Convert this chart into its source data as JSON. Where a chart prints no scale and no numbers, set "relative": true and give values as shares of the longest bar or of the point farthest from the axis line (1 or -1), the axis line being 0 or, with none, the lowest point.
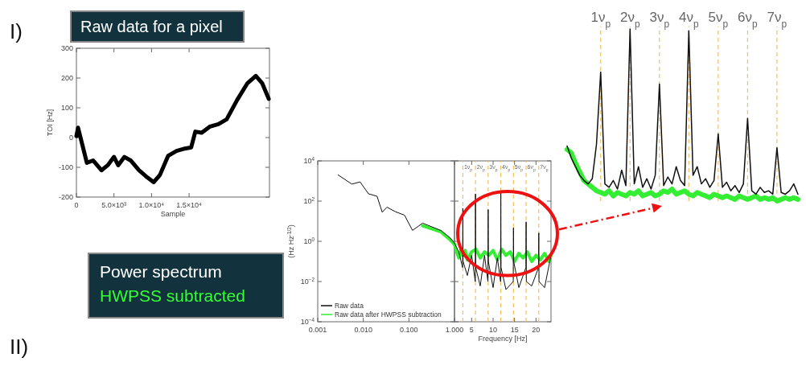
{
  "chart_data": [
    {
      "type": "line",
      "title": "Raw data for a pixel",
      "xlabel": "Sample",
      "ylabel": "TOI [Hz]",
      "annotations": [
        "I)",
        "II)"
      ],
      "x": [
        0,
        220,
        1390,
        2220,
        3330,
        4170,
        5000,
        5560,
        6390,
        7220,
        8330,
        9440,
        10280,
        11110,
        12220,
        13330,
        14440,
        15280,
        15830,
        16670,
        17780,
        18890,
        20000,
        21390,
        22780,
        23890,
        24720,
        25600
      ],
      "values": [
        5,
        33,
        -85,
        -77,
        -110,
        -93,
        -65,
        -93,
        -65,
        -77,
        -110,
        -134,
        -150,
        -126,
        -61,
        -45,
        -37,
        -33,
        20,
        16,
        37,
        45,
        61,
        126,
        183,
        207,
        183,
        130
      ],
      "color": "#000000",
      "xlim": [
        0,
        25700
      ],
      "ylim": [
        -200,
        300
      ],
      "xticks": [
        0,
        {
          "value": 5000,
          "label": "5.0×10³"
        },
        {
          "value": 10000,
          "label": "1.0×10⁴"
        },
        {
          "value": 15000,
          "label": "1.5×10⁴"
        }
      ],
      "yticks": [
        -200,
        -100,
        0,
        100,
        200,
        300
      ]
    },
    {
      "type": "line",
      "ylabel": "(Hz Hz$^{-1/2}$)",
      "annotations": [
        "Power spectrum",
        "HWPSS subtracted"
      ],
      "log": "xy",
      "legend": "bottom left",
      "xlim": [
        0.001,
        1
      ],
      "ylim": [
        0.0001,
        10000
      ],
      "xticks": [
        0.001,
        {
          "value": 0.01,
          "label": "0.010"
        },
        {
          "value": 0.1,
          "label": "0.100"
        },
        {
          "value": 1,
          "label": "1.000"
        }
      ],
      "yticks": [
        {
          "value": 10000,
          "label": "10$^{4}$"
        },
        {
          "value": 100,
          "label": "10$^{2}$"
        },
        {
          "value": 1,
          "label": "10$^{0}$"
        },
        {
          "value": 0.01,
          "label": "10$^{−2}$"
        },
        {
          "value": 0.0001,
          "label": "10$^{−4}$"
        }
      ],
      "series": [
        {
          "name": "Raw data",
          "color": "#111111",
          "x": [
            0.0028,
            0.0056,
            0.0085,
            0.013,
            0.02,
            0.026,
            0.033,
            0.05,
            0.08,
            0.12,
            0.2,
            0.5,
            0.8,
            1.0
          ],
          "values": [
            2000,
            700,
            900,
            230,
            175,
            28,
            50,
            30,
            20,
            3.5,
            8,
            3.5,
            1.5,
            0.8
          ]
        },
        {
          "name": "Raw data after HWPSS subtraction",
          "color": "#33ee33",
          "x": [
            0.2,
            0.5,
            0.8,
            1.0
          ],
          "values": [
            6,
            3,
            1.2,
            0.7
          ]
        }
      ]
    },
    {
      "type": "line",
      "xlabel": "Frequency [Hz]",
      "log": "y",
      "tick_labels": "x",
      "xlim": [
        1,
        23.5
      ],
      "ylim": [
        0.0001,
        10000
      ],
      "xticks": [
        5,
        10,
        15,
        20
      ],
      "yticks": [
        {
          "value": 10000,
          "label": null
        },
        {
          "value": 100,
          "label": null
        },
        {
          "value": 1,
          "label": null
        },
        {
          "value": 0.01,
          "label": null
        },
        {
          "value": 0.0001,
          "label": null
        }
      ],
      "series": [
        {
          "color": "#111111",
          "x": [
            1.0,
            2,
            2.9,
            2.95,
            3.0,
            4,
            5,
            5.85,
            5.9,
            5.95,
            7,
            8,
            8.8,
            8.85,
            8.9,
            10,
            11,
            11.75,
            11.8,
            11.85,
            13,
            14.7,
            14.75,
            14.8,
            16,
            17.65,
            17.7,
            17.75,
            19,
            20.6,
            20.65,
            20.7,
            22,
            23.5
          ],
          "values": [
            0.8,
            0.3,
            0.05,
            44,
            0.1,
            0.02,
            0.2,
            0.01,
            230,
            0.05,
            0.006,
            0.2,
            0.01,
            38,
            0.1,
            0.005,
            0.15,
            0.01,
            260,
            0.05,
            0.004,
            0.01,
            4.7,
            0.1,
            0.005,
            0.05,
            9.3,
            0.01,
            0.006,
            0.05,
            2.6,
            0.01,
            0.005,
            0.2
          ]
        },
        {
          "color": "#33ee33",
          "x": [
            1.0,
            1.5,
            2,
            2.5,
            3,
            3.5,
            4,
            5,
            6,
            7,
            8,
            9,
            10,
            11,
            12,
            13,
            14,
            15,
            16,
            17,
            18,
            19,
            20,
            21,
            22,
            23,
            23.5
          ],
          "values": [
            0.7,
            0.3,
            0.15,
            0.4,
            0.2,
            0.35,
            0.12,
            0.3,
            0.4,
            0.15,
            0.3,
            0.2,
            0.35,
            0.12,
            0.4,
            0.2,
            0.3,
            0.1,
            0.25,
            0.15,
            0.3,
            0.1,
            0.2,
            0.12,
            0.25,
            0.1,
            0.2
          ]
        }
      ],
      "ref_lines": [
        {
          "axis": "x",
          "value": 2.95,
          "label": "1ν$_{p}$",
          "color": "#f0c060",
          "line_style": "dashed"
        },
        {
          "axis": "x",
          "value": 5.9,
          "label": "2ν$_{p}$",
          "color": "#f0c060",
          "line_style": "dashed"
        },
        {
          "axis": "x",
          "value": 8.85,
          "label": "3ν$_{p}$",
          "color": "#f0c060",
          "line_style": "dashed"
        },
        {
          "axis": "x",
          "value": 11.8,
          "label": "4ν$_{p}$",
          "color": "#f0c060",
          "line_style": "dashed"
        },
        {
          "axis": "x",
          "value": 14.75,
          "label": "5ν$_{p}$",
          "color": "#f0c060",
          "line_style": "dashed"
        },
        {
          "axis": "x",
          "value": 17.7,
          "label": "6ν$_{p}$",
          "color": "#f0c060",
          "line_style": "dashed"
        },
        {
          "axis": "x",
          "value": 20.65,
          "label": "7ν$_{p}$",
          "color": "#f0c060",
          "line_style": "dashed"
        }
      ]
    },
    {
      "type": "line",
      "relative": true,
      "categories": [
        null,
        null,
        null,
        null,
        null,
        null,
        null,
        null,
        "1ν$_{p}$",
        null,
        null,
        null,
        null,
        null,
        null,
        "2ν$_{p}$",
        null,
        null,
        null,
        null,
        null,
        null,
        "3ν$_{p}$",
        null,
        null,
        null,
        null,
        null,
        null,
        "4ν$_{p}$",
        null,
        null,
        null,
        null,
        null,
        null,
        "5ν$_{p}$",
        null,
        null,
        null,
        null,
        null,
        null,
        "6ν$_{p}$",
        null,
        null,
        null,
        null,
        null,
        null,
        "7ν$_{p}$",
        null,
        null,
        null,
        null,
        null
      ],
      "series": [
        {
          "color": "#111111",
          "values": [
            0.32,
            0.25,
            0.2,
            0.15,
            0.12,
            0.1,
            0.13,
            0.33,
            0.75,
            0.1,
            0.08,
            0.12,
            0.07,
            0.18,
            0.09,
            1.0,
            0.1,
            0.2,
            0.08,
            0.13,
            0.07,
            0.15,
            0.68,
            0.09,
            0.14,
            0.1,
            0.2,
            0.12,
            0.09,
            0.99,
            0.15,
            0.2,
            0.1,
            0.13,
            0.08,
            0.12,
            0.39,
            0.08,
            0.11,
            0.06,
            0.09,
            0.05,
            0.1,
            0.48,
            0.06,
            0.04,
            0.08,
            0.05,
            0.06,
            0.04,
            0.31,
            0.05,
            0.04,
            0.06,
            0.1,
            0.04
          ]
        },
        {
          "color": "#33ee33",
          "values": [
            0.3,
            0.28,
            0.22,
            0.17,
            0.12,
            0.1,
            0.08,
            0.06,
            0.05,
            0.04,
            0.06,
            0.03,
            0.05,
            0.04,
            0.03,
            0.05,
            0.04,
            0.06,
            0.03,
            0.04,
            0.05,
            0.03,
            0.04,
            0.06,
            0.05,
            0.07,
            0.04,
            0.05,
            0.06,
            0.04,
            0.03,
            0.05,
            0.04,
            0.03,
            0.02,
            0.04,
            0.03,
            0.02,
            0.03,
            0.02,
            0.01,
            0.03,
            0.02,
            0.01,
            0.02,
            0.03,
            0.01,
            0.02,
            0.01,
            0.02,
            0,
            0.01,
            0.02,
            0.01,
            0.02,
            0.01
          ]
        }
      ],
      "ref_lines": [
        {
          "axis": "x",
          "value": "1ν$_{p}$",
          "color": "#f0c060",
          "line_style": "dashed"
        },
        {
          "axis": "x",
          "value": "2ν$_{p}$",
          "color": "#f0c060",
          "line_style": "dashed"
        },
        {
          "axis": "x",
          "value": "3ν$_{p}$",
          "color": "#f0c060",
          "line_style": "dashed"
        },
        {
          "axis": "x",
          "value": "4ν$_{p}$",
          "color": "#f0c060",
          "line_style": "dashed"
        },
        {
          "axis": "x",
          "value": "5ν$_{p}$",
          "color": "#f0c060",
          "line_style": "dashed"
        },
        {
          "axis": "x",
          "value": "6ν$_{p}$",
          "color": "#f0c060",
          "line_style": "dashed"
        },
        {
          "axis": "x",
          "value": "7ν$_{p}$",
          "color": "#f0c060",
          "line_style": "dashed"
        }
      ]
    }
  ]
}
